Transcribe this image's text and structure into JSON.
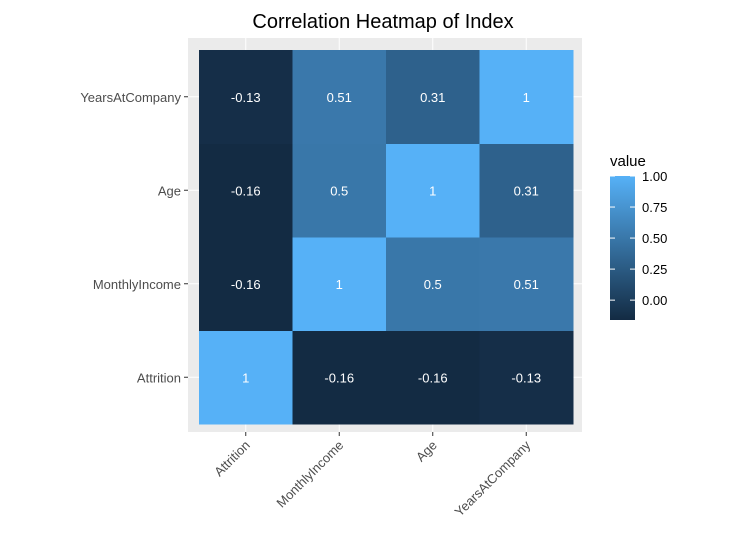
{
  "chart_data": {
    "type": "heatmap",
    "title": "Correlation Heatmap of Index",
    "x_categories": [
      "Attrition",
      "MonthlyIncome",
      "Age",
      "YearsAtCompany"
    ],
    "y_categories": [
      "Attrition",
      "MonthlyIncome",
      "Age",
      "YearsAtCompany"
    ],
    "values": [
      [
        1,
        -0.16,
        -0.16,
        -0.13
      ],
      [
        -0.16,
        1,
        0.5,
        0.51
      ],
      [
        -0.16,
        0.5,
        1,
        0.31
      ],
      [
        -0.13,
        0.51,
        0.31,
        1
      ]
    ],
    "legend": {
      "title": "value",
      "ticks": [
        "1.00",
        "0.75",
        "0.50",
        "0.25",
        "0.00"
      ],
      "tick_values": [
        1.0,
        0.75,
        0.5,
        0.25,
        0.0
      ],
      "range": [
        -0.16,
        1.0
      ],
      "low_color": "#132B43",
      "high_color": "#56B1F7",
      "placement": "right"
    },
    "panel_color": "#EBEBEB",
    "grid": true
  }
}
